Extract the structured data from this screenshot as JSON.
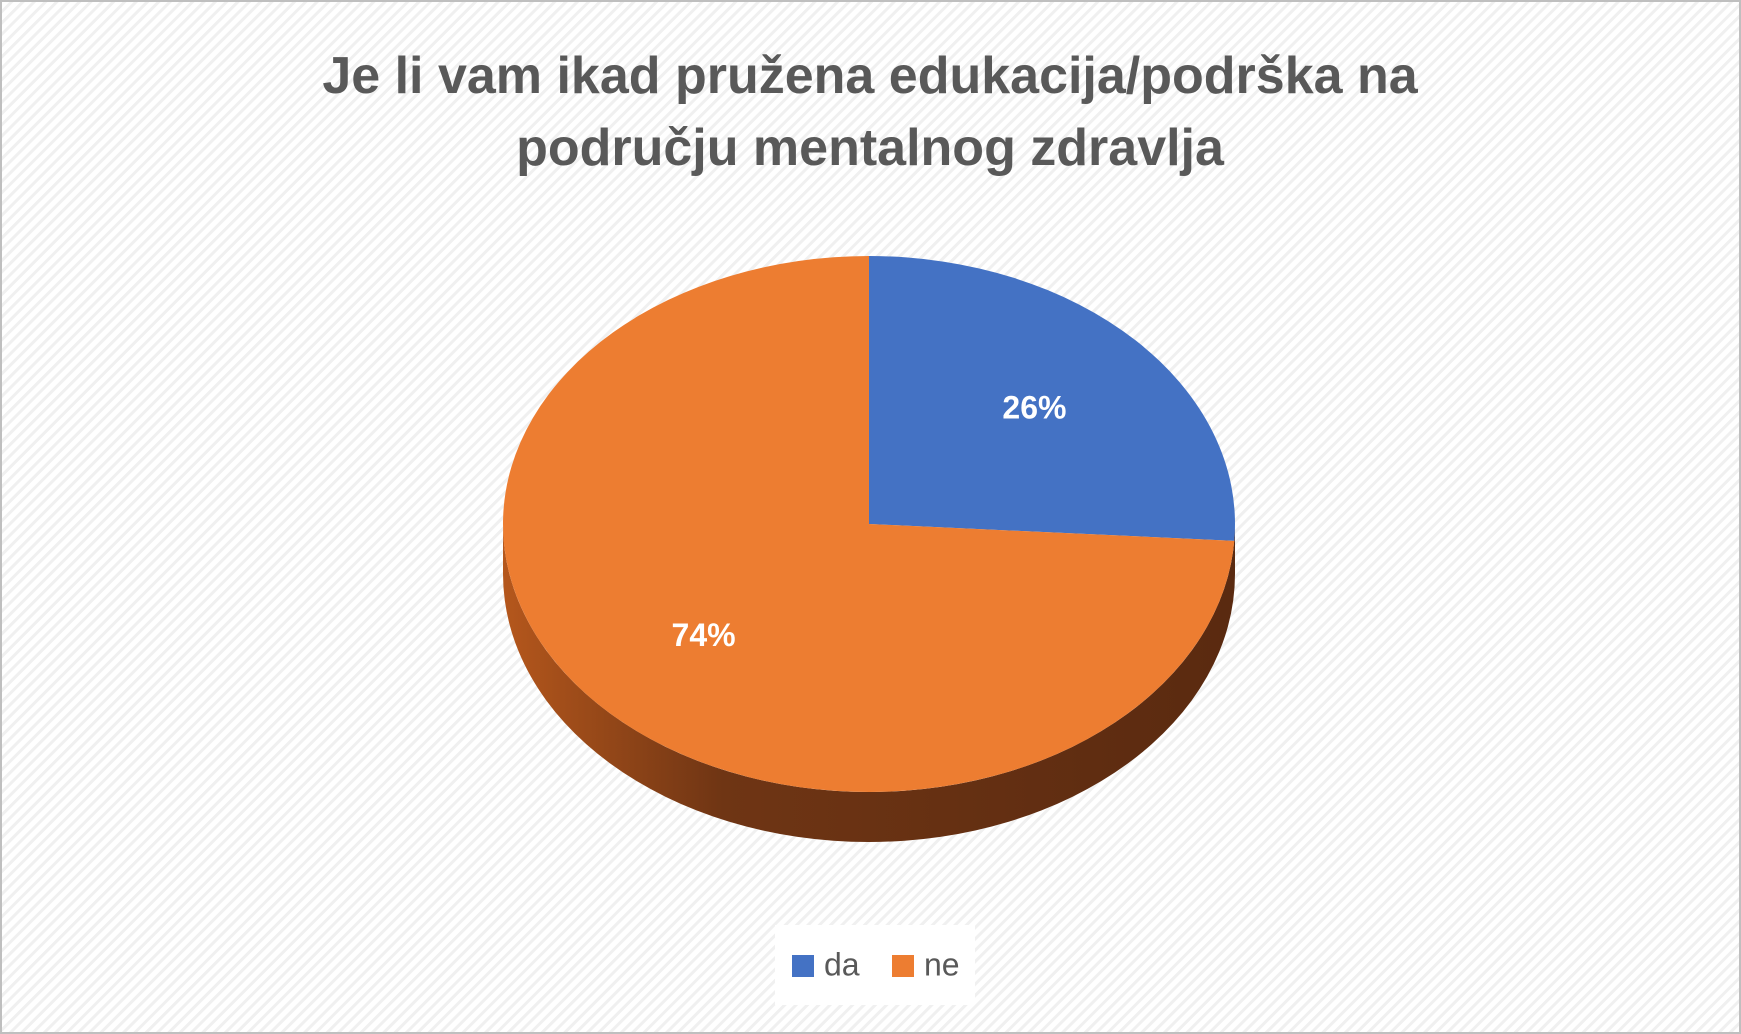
{
  "chart_data": {
    "type": "pie",
    "title": "Je li vam ikad pružena edukacija/podrška na području mentalnog zdravlja",
    "categories": [
      "da",
      "ne"
    ],
    "values": [
      26,
      74
    ],
    "value_labels": [
      "26%",
      "74%"
    ],
    "colors": [
      "#4472c4",
      "#ed7d31"
    ],
    "legend": "bottom"
  }
}
